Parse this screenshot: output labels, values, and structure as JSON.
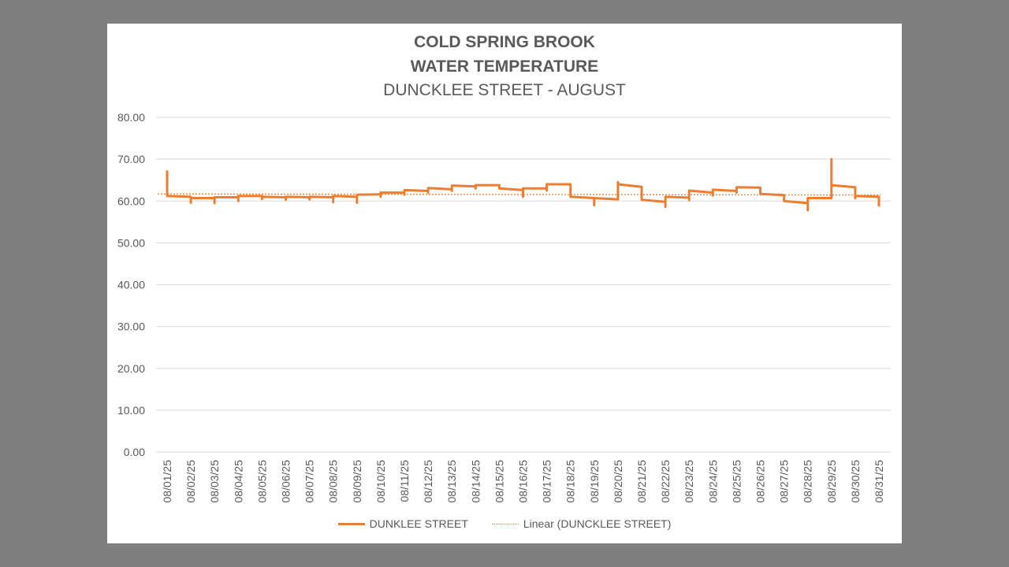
{
  "chart_data": {
    "type": "line",
    "title": [
      "COLD SPRING BROOK",
      "WATER TEMPERATURE"
    ],
    "subtitle": "DUNCKLEE STREET  - AUGUST",
    "xlabel": "",
    "ylabel": "",
    "ylim": [
      0,
      80
    ],
    "yticks": [
      "0.00",
      "10.00",
      "20.00",
      "30.00",
      "40.00",
      "50.00",
      "60.00",
      "70.00",
      "80.00"
    ],
    "categories": [
      "08/01/25",
      "08/02/25",
      "08/03/25",
      "08/04/25",
      "08/05/25",
      "08/06/25",
      "08/07/25",
      "08/08/25",
      "08/09/25",
      "08/10/25",
      "08/11/25",
      "08/12/25",
      "08/13/25",
      "08/14/25",
      "08/15/25",
      "08/16/25",
      "08/17/25",
      "08/18/25",
      "08/19/25",
      "08/20/25",
      "08/21/25",
      "08/22/25",
      "08/23/25",
      "08/24/25",
      "08/25/25",
      "08/26/25",
      "08/27/25",
      "08/28/25",
      "08/29/25",
      "08/30/25",
      "08/31/25"
    ],
    "grid": true,
    "legend_position": "bottom",
    "series": [
      {
        "name": "DUNKLEE STREET",
        "color": "#ed7d31",
        "values": [
          {
            "x": 0.0,
            "y": 67.3
          },
          {
            "x": 0.0,
            "y": 61.2
          },
          {
            "x": 1.0,
            "y": 61.0
          },
          {
            "x": 1.0,
            "y": 59.6
          },
          {
            "x": 1.0,
            "y": 60.7
          },
          {
            "x": 2.0,
            "y": 60.7
          },
          {
            "x": 2.0,
            "y": 59.5
          },
          {
            "x": 2.0,
            "y": 60.9
          },
          {
            "x": 3.0,
            "y": 60.9
          },
          {
            "x": 3.0,
            "y": 60.0
          },
          {
            "x": 3.0,
            "y": 61.2
          },
          {
            "x": 4.0,
            "y": 61.2
          },
          {
            "x": 4.0,
            "y": 60.5
          },
          {
            "x": 4.0,
            "y": 61.0
          },
          {
            "x": 5.0,
            "y": 60.9
          },
          {
            "x": 5.0,
            "y": 60.3
          },
          {
            "x": 5.0,
            "y": 61.0
          },
          {
            "x": 6.0,
            "y": 60.9
          },
          {
            "x": 6.0,
            "y": 60.4
          },
          {
            "x": 6.0,
            "y": 61.0
          },
          {
            "x": 7.0,
            "y": 60.9
          },
          {
            "x": 7.0,
            "y": 59.7
          },
          {
            "x": 7.0,
            "y": 61.2
          },
          {
            "x": 8.0,
            "y": 61.0
          },
          {
            "x": 8.0,
            "y": 59.6
          },
          {
            "x": 8.0,
            "y": 61.5
          },
          {
            "x": 9.0,
            "y": 61.6
          },
          {
            "x": 9.0,
            "y": 61.0
          },
          {
            "x": 9.0,
            "y": 62.0
          },
          {
            "x": 10.0,
            "y": 62.0
          },
          {
            "x": 10.0,
            "y": 61.5
          },
          {
            "x": 10.0,
            "y": 62.6
          },
          {
            "x": 11.0,
            "y": 62.4
          },
          {
            "x": 11.0,
            "y": 62.0
          },
          {
            "x": 11.0,
            "y": 63.1
          },
          {
            "x": 12.0,
            "y": 62.8
          },
          {
            "x": 12.0,
            "y": 62.4
          },
          {
            "x": 12.0,
            "y": 63.7
          },
          {
            "x": 13.0,
            "y": 63.5
          },
          {
            "x": 13.0,
            "y": 63.0
          },
          {
            "x": 13.0,
            "y": 63.8
          },
          {
            "x": 14.0,
            "y": 63.8
          },
          {
            "x": 14.0,
            "y": 63.2
          },
          {
            "x": 14.0,
            "y": 63.0
          },
          {
            "x": 15.0,
            "y": 62.6
          },
          {
            "x": 15.0,
            "y": 61.0
          },
          {
            "x": 15.0,
            "y": 63.0
          },
          {
            "x": 16.0,
            "y": 63.0
          },
          {
            "x": 16.0,
            "y": 62.5
          },
          {
            "x": 16.0,
            "y": 64.0
          },
          {
            "x": 17.0,
            "y": 64.0
          },
          {
            "x": 17.0,
            "y": 61.0
          },
          {
            "x": 18.0,
            "y": 60.7
          },
          {
            "x": 18.0,
            "y": 59.0
          },
          {
            "x": 18.0,
            "y": 60.7
          },
          {
            "x": 19.0,
            "y": 60.4
          },
          {
            "x": 19.0,
            "y": 64.5
          },
          {
            "x": 19.0,
            "y": 64.0
          },
          {
            "x": 20.0,
            "y": 63.4
          },
          {
            "x": 20.0,
            "y": 60.3
          },
          {
            "x": 21.0,
            "y": 59.8
          },
          {
            "x": 21.0,
            "y": 58.6
          },
          {
            "x": 21.0,
            "y": 61.0
          },
          {
            "x": 22.0,
            "y": 60.8
          },
          {
            "x": 22.0,
            "y": 60.2
          },
          {
            "x": 22.0,
            "y": 62.5
          },
          {
            "x": 23.0,
            "y": 62.0
          },
          {
            "x": 23.0,
            "y": 61.3
          },
          {
            "x": 23.0,
            "y": 62.7
          },
          {
            "x": 24.0,
            "y": 62.4
          },
          {
            "x": 24.0,
            "y": 62.0
          },
          {
            "x": 24.0,
            "y": 63.3
          },
          {
            "x": 25.0,
            "y": 63.2
          },
          {
            "x": 25.0,
            "y": 61.7
          },
          {
            "x": 26.0,
            "y": 61.4
          },
          {
            "x": 26.0,
            "y": 60.0
          },
          {
            "x": 27.0,
            "y": 59.5
          },
          {
            "x": 27.0,
            "y": 57.8
          },
          {
            "x": 27.0,
            "y": 60.7
          },
          {
            "x": 28.0,
            "y": 60.7
          },
          {
            "x": 28.0,
            "y": 70.0
          },
          {
            "x": 28.0,
            "y": 63.8
          },
          {
            "x": 29.0,
            "y": 63.3
          },
          {
            "x": 29.0,
            "y": 60.7
          },
          {
            "x": 29.0,
            "y": 61.2
          },
          {
            "x": 30.0,
            "y": 61.0
          },
          {
            "x": 30.0,
            "y": 58.7
          }
        ]
      }
    ],
    "trendline": {
      "name": "Linear (DUNCKLEE STREET)",
      "color": "#ed7d31",
      "x": [
        0,
        30
      ],
      "y": [
        61.7,
        61.4
      ]
    }
  }
}
